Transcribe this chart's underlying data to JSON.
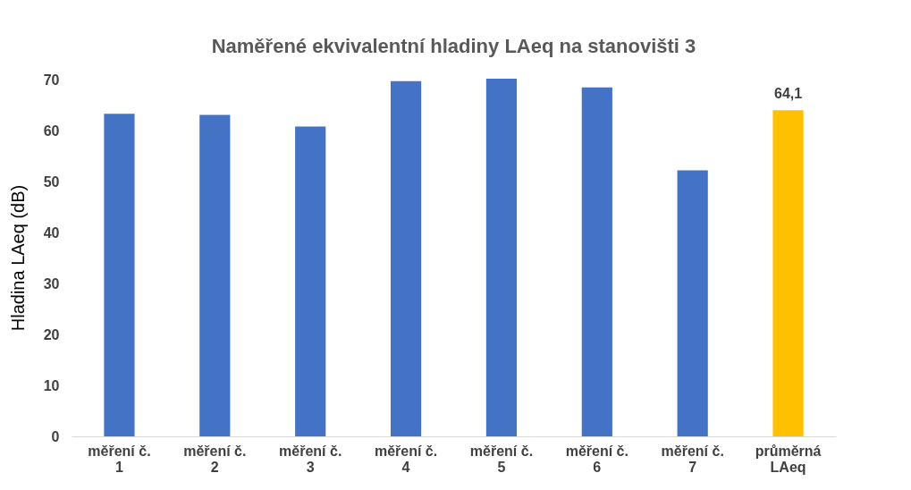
{
  "chart_data": {
    "type": "bar",
    "title": "Naměřené ekvivalentní hladiny LAeq na stanovišti 3",
    "ylabel": "Hladina LAeq  (dB)",
    "categories": [
      "měření č. 1",
      "měření č. 2",
      "měření č. 3",
      "měření č. 4",
      "měření č. 5",
      "měření č. 6",
      "měření č. 7",
      "průměrná LAeq"
    ],
    "values": [
      63.4,
      63.2,
      60.9,
      69.8,
      70.3,
      68.6,
      52.3,
      64.1
    ],
    "colors": [
      "#4472c4",
      "#4472c4",
      "#4472c4",
      "#4472c4",
      "#4472c4",
      "#4472c4",
      "#4472c4",
      "#ffc000"
    ],
    "value_labels": [
      null,
      null,
      null,
      null,
      null,
      null,
      null,
      "64,1"
    ],
    "ylim": [
      0,
      70.3
    ],
    "yticks": [
      0,
      10,
      20,
      30,
      40,
      50,
      60,
      70
    ],
    "grid": false
  }
}
